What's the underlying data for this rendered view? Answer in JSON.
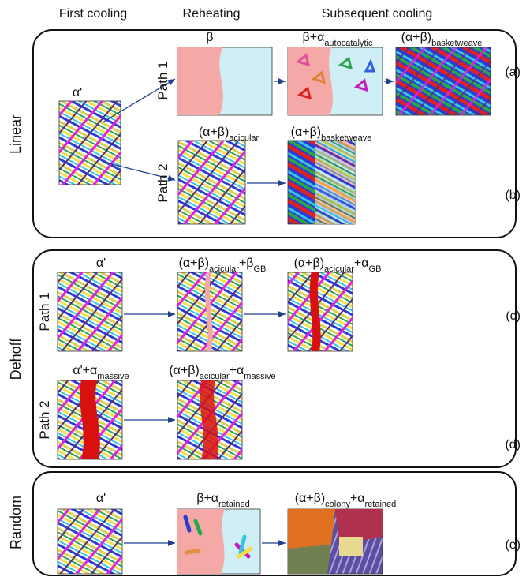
{
  "columns": [
    "First cooling",
    "Reheating",
    "Subsequent cooling"
  ],
  "groups": [
    "Linear",
    "Dehoff",
    "Random"
  ],
  "paths": [
    "Path 1",
    "Path 2",
    "Path 1",
    "Path 2"
  ],
  "cases": [
    "(a)",
    "(b)",
    "(c)",
    "(d)",
    "(e)"
  ],
  "labels": [
    [
      {
        "text": "α'",
        "sub": false
      }
    ],
    [
      {
        "text": "β",
        "sub": false
      }
    ],
    [
      {
        "text": "β+α",
        "sub": false
      },
      {
        "text": "autocatalytic",
        "sub": true
      }
    ],
    [
      {
        "text": "(α+β)",
        "sub": false
      },
      {
        "text": "basketweave",
        "sub": true
      }
    ],
    [
      {
        "text": "(α+β)",
        "sub": false
      },
      {
        "text": "acicular",
        "sub": true
      }
    ],
    [
      {
        "text": "(α+β)",
        "sub": false
      },
      {
        "text": "basketweave",
        "sub": true
      }
    ],
    [
      {
        "text": "α'",
        "sub": false
      }
    ],
    [
      {
        "text": "(α+β)",
        "sub": false
      },
      {
        "text": "acicular",
        "sub": true
      },
      {
        "text": "+β",
        "sub": false
      },
      {
        "text": "GB",
        "sub": true
      }
    ],
    [
      {
        "text": "(α+β)",
        "sub": false
      },
      {
        "text": "acicular",
        "sub": true
      },
      {
        "text": "+α",
        "sub": false
      },
      {
        "text": "GB",
        "sub": true
      }
    ],
    [
      {
        "text": "α'+α",
        "sub": false
      },
      {
        "text": "massive",
        "sub": true
      }
    ],
    [
      {
        "text": "(α+β)",
        "sub": false
      },
      {
        "text": "acicular",
        "sub": true
      },
      {
        "text": "+α",
        "sub": false
      },
      {
        "text": "massive",
        "sub": true
      }
    ],
    [
      {
        "text": "α'",
        "sub": false
      }
    ],
    [
      {
        "text": "β+α",
        "sub": false
      },
      {
        "text": "retained",
        "sub": true
      }
    ],
    [
      {
        "text": "(α+β)",
        "sub": false
      },
      {
        "text": "colony",
        "sub": true
      },
      {
        "text": "+α",
        "sub": false
      },
      {
        "text": "retained",
        "sub": true
      }
    ]
  ]
}
